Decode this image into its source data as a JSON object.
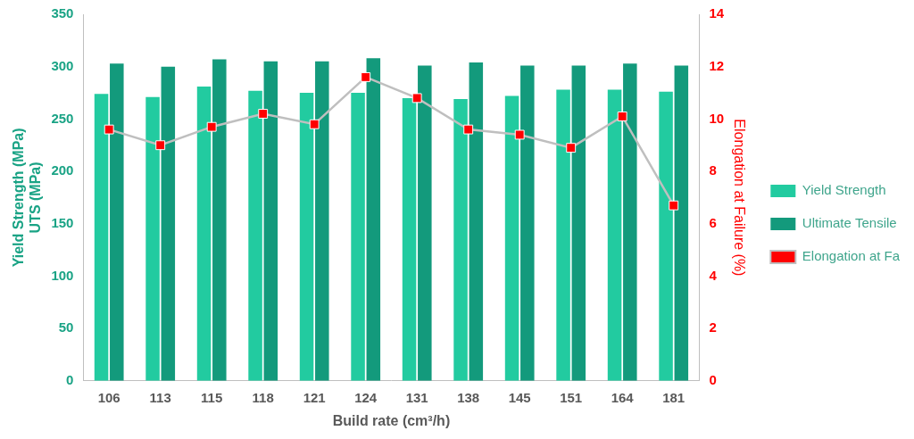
{
  "chart_data": {
    "type": "bar",
    "x_label": "Build rate (cm³/h)",
    "y_label": [
      "Yield Strength (MPa)",
      "UTS (MPa)"
    ],
    "y2_label": "Elongation at Failure (%)",
    "categories": [
      "106",
      "113",
      "115",
      "118",
      "121",
      "124",
      "131",
      "138",
      "145",
      "151",
      "164",
      "181"
    ],
    "series": [
      {
        "name": "Yield Strength",
        "type": "bar",
        "color": "#22cba0",
        "values": [
          274,
          271,
          281,
          277,
          275,
          275,
          270,
          269,
          272,
          278,
          278,
          276
        ]
      },
      {
        "name": "Ultimate Tensile Strength",
        "type": "bar",
        "color": "#139a7c",
        "values": [
          303,
          300,
          307,
          305,
          305,
          308,
          301,
          304,
          301,
          301,
          303,
          301
        ]
      },
      {
        "name": "Elongation at Failure",
        "type": "line",
        "axis": "y2",
        "color": "#bfbfbf",
        "marker": "square",
        "line_style": "solid",
        "values": [
          9.6,
          9.0,
          9.7,
          10.2,
          9.8,
          11.6,
          10.8,
          9.6,
          9.4,
          8.9,
          10.1,
          6.7
        ]
      }
    ],
    "ylim": [
      0,
      350
    ],
    "yticks": [
      0,
      50,
      100,
      150,
      200,
      250,
      300,
      350
    ],
    "y2lim": [
      0,
      14
    ],
    "y2ticks": [
      0,
      2,
      4,
      6,
      8,
      10,
      12,
      14
    ],
    "grid": false,
    "legend": "right"
  }
}
